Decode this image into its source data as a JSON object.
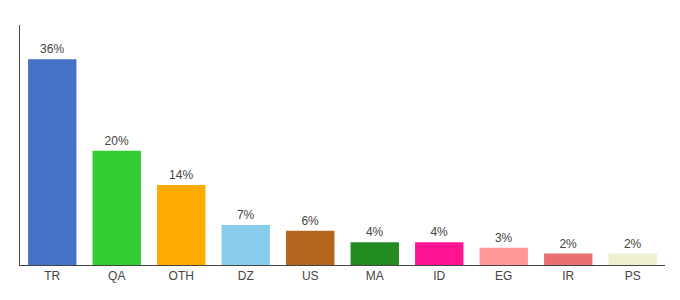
{
  "chart_data": {
    "type": "bar",
    "categories": [
      "TR",
      "QA",
      "OTH",
      "DZ",
      "US",
      "MA",
      "ID",
      "EG",
      "IR",
      "PS"
    ],
    "values": [
      36,
      20,
      14,
      7,
      6,
      4,
      4,
      3,
      2,
      2
    ],
    "value_labels": [
      "36%",
      "20%",
      "14%",
      "7%",
      "6%",
      "4%",
      "4%",
      "3%",
      "2%",
      "2%"
    ],
    "colors": [
      "#4472c4",
      "#33cc33",
      "#ffaa00",
      "#88ccee",
      "#b5651d",
      "#228b22",
      "#ff1493",
      "#ff9999",
      "#e87070",
      "#f0f0d0"
    ],
    "ylim": [
      0,
      42
    ],
    "grid": false,
    "tick_labels": "x"
  }
}
